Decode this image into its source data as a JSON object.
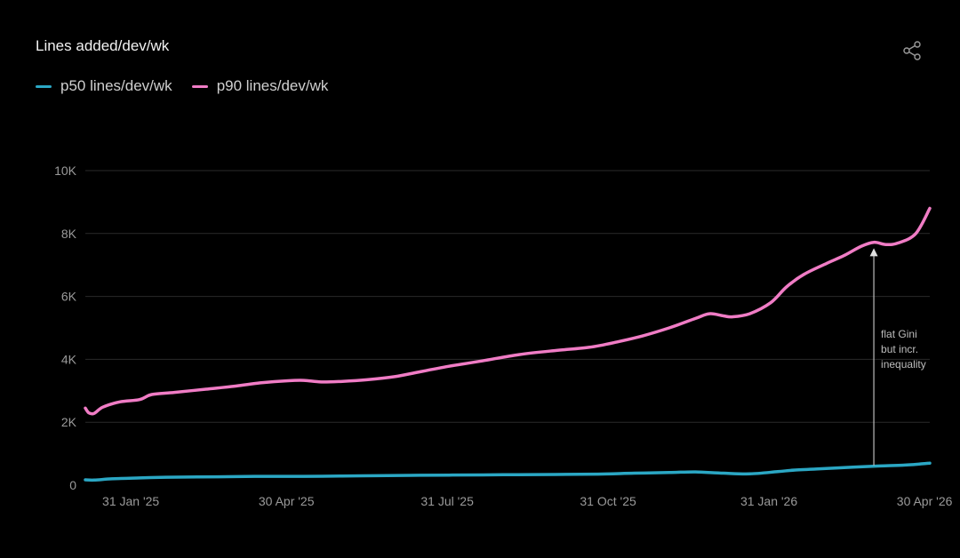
{
  "header": {
    "share_icon": "share-icon"
  },
  "chart_data": {
    "type": "line",
    "title": "Lines added/dev/wk",
    "xlabel": "",
    "ylabel": "",
    "xlim": [
      "2025-01-05",
      "2026-05-03"
    ],
    "ylim": [
      0,
      10000
    ],
    "grid": true,
    "legend_position": "top-left",
    "x_ticks": [
      {
        "date": "2025-01-31",
        "label": "31 Jan '25"
      },
      {
        "date": "2025-04-30",
        "label": "30 Apr '25"
      },
      {
        "date": "2025-07-31",
        "label": "31 Jul '25"
      },
      {
        "date": "2025-10-31",
        "label": "31 Oct '25"
      },
      {
        "date": "2026-01-31",
        "label": "31 Jan '26"
      },
      {
        "date": "2026-04-30",
        "label": "30 Apr '26"
      }
    ],
    "y_ticks": [
      {
        "value": 0,
        "label": "0"
      },
      {
        "value": 2000,
        "label": "2K"
      },
      {
        "value": 4000,
        "label": "4K"
      },
      {
        "value": 6000,
        "label": "6K"
      },
      {
        "value": 8000,
        "label": "8K"
      },
      {
        "value": 10000,
        "label": "10K"
      }
    ],
    "series": [
      {
        "name": "p50 lines/dev/wk",
        "color": "#2ba7c4",
        "points": [
          [
            "2025-01-05",
            170
          ],
          [
            "2025-01-10",
            160
          ],
          [
            "2025-01-20",
            200
          ],
          [
            "2025-02-05",
            230
          ],
          [
            "2025-02-20",
            250
          ],
          [
            "2025-03-10",
            260
          ],
          [
            "2025-04-01",
            270
          ],
          [
            "2025-04-20",
            280
          ],
          [
            "2025-05-10",
            280
          ],
          [
            "2025-06-01",
            290
          ],
          [
            "2025-06-20",
            300
          ],
          [
            "2025-07-10",
            310
          ],
          [
            "2025-08-01",
            320
          ],
          [
            "2025-09-01",
            330
          ],
          [
            "2025-10-01",
            340
          ],
          [
            "2025-10-25",
            350
          ],
          [
            "2025-11-15",
            380
          ],
          [
            "2025-12-05",
            400
          ],
          [
            "2025-12-20",
            420
          ],
          [
            "2026-01-05",
            380
          ],
          [
            "2026-01-20",
            360
          ],
          [
            "2026-02-05",
            430
          ],
          [
            "2026-02-15",
            480
          ],
          [
            "2026-03-01",
            520
          ],
          [
            "2026-03-20",
            570
          ],
          [
            "2026-04-05",
            610
          ],
          [
            "2026-04-20",
            640
          ],
          [
            "2026-05-03",
            700
          ]
        ]
      },
      {
        "name": "p90 lines/dev/wk",
        "color": "#f07cc5",
        "points": [
          [
            "2025-01-05",
            2450
          ],
          [
            "2025-01-07",
            2300
          ],
          [
            "2025-01-10",
            2280
          ],
          [
            "2025-01-15",
            2480
          ],
          [
            "2025-01-25",
            2650
          ],
          [
            "2025-02-05",
            2720
          ],
          [
            "2025-02-12",
            2880
          ],
          [
            "2025-02-25",
            2950
          ],
          [
            "2025-03-15",
            3050
          ],
          [
            "2025-04-01",
            3150
          ],
          [
            "2025-04-15",
            3250
          ],
          [
            "2025-05-01",
            3320
          ],
          [
            "2025-05-10",
            3330
          ],
          [
            "2025-05-20",
            3280
          ],
          [
            "2025-06-01",
            3300
          ],
          [
            "2025-06-15",
            3350
          ],
          [
            "2025-07-01",
            3450
          ],
          [
            "2025-07-15",
            3600
          ],
          [
            "2025-08-01",
            3780
          ],
          [
            "2025-08-20",
            3950
          ],
          [
            "2025-09-10",
            4150
          ],
          [
            "2025-10-01",
            4280
          ],
          [
            "2025-10-20",
            4380
          ],
          [
            "2025-11-05",
            4550
          ],
          [
            "2025-11-20",
            4750
          ],
          [
            "2025-12-05",
            5000
          ],
          [
            "2025-12-20",
            5300
          ],
          [
            "2025-12-28",
            5450
          ],
          [
            "2026-01-05",
            5380
          ],
          [
            "2026-01-10",
            5350
          ],
          [
            "2026-01-20",
            5450
          ],
          [
            "2026-02-01",
            5800
          ],
          [
            "2026-02-10",
            6300
          ],
          [
            "2026-02-20",
            6700
          ],
          [
            "2026-03-05",
            7050
          ],
          [
            "2026-03-15",
            7300
          ],
          [
            "2026-03-25",
            7600
          ],
          [
            "2026-04-01",
            7720
          ],
          [
            "2026-04-08",
            7650
          ],
          [
            "2026-04-15",
            7700
          ],
          [
            "2026-04-25",
            8000
          ],
          [
            "2026-05-03",
            8800
          ]
        ]
      }
    ],
    "annotations": [
      {
        "text_lines": [
          "flat Gini",
          "but incr.",
          "inequality"
        ],
        "x": "2026-04-01",
        "y_from": 620,
        "y_to": 7700
      }
    ]
  }
}
